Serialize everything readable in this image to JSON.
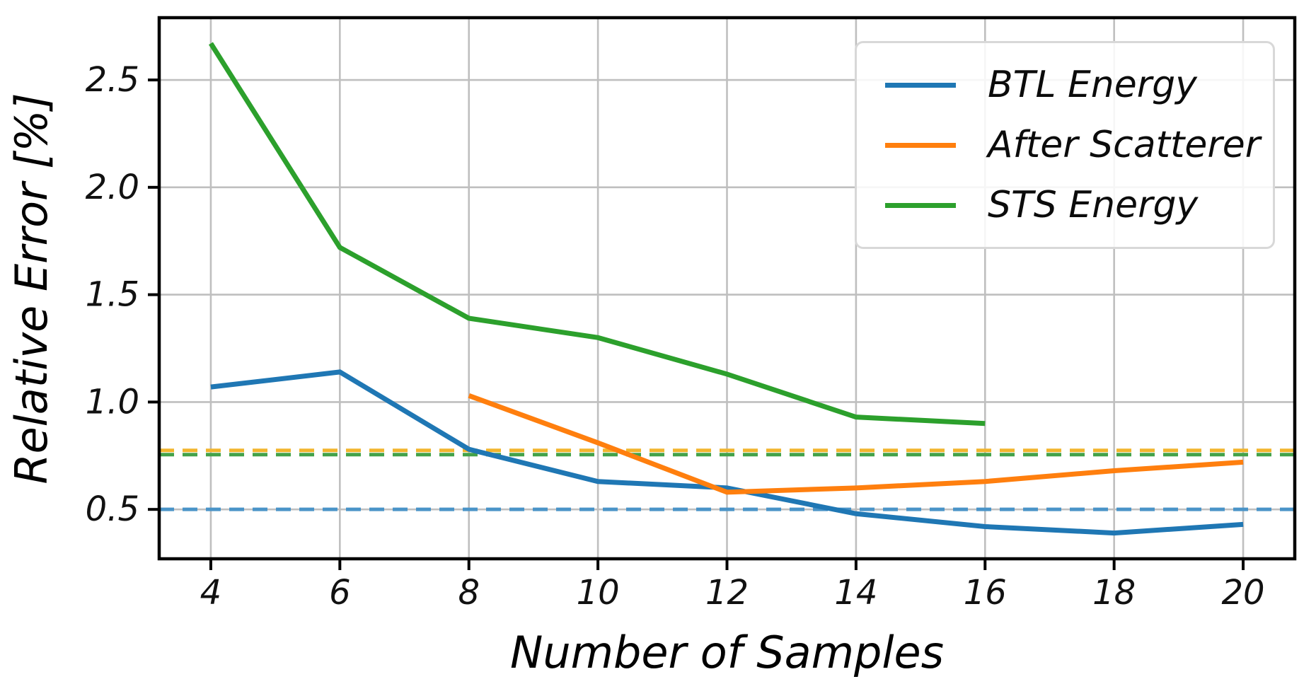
{
  "chart_data": {
    "type": "line",
    "title": "",
    "xlabel": "Number of Samples",
    "ylabel": "Relative Error [%]",
    "xlim": [
      3.2,
      20.8
    ],
    "ylim": [
      0.27,
      2.79
    ],
    "x_ticks": [
      4,
      6,
      8,
      10,
      12,
      14,
      16,
      18,
      20
    ],
    "x_tick_labels": [
      "4",
      "6",
      "8",
      "10",
      "12",
      "14",
      "16",
      "18",
      "20"
    ],
    "y_ticks": [
      0.5,
      1.0,
      1.5,
      2.0,
      2.5
    ],
    "y_tick_labels": [
      "0.5",
      "1.0",
      "1.5",
      "2.0",
      "2.5"
    ],
    "grid": true,
    "grid_color": "#bfbfbf",
    "legend_position": "upper right",
    "series": [
      {
        "name": "BTL Energy",
        "color": "#1f77b4",
        "style": "solid",
        "x": [
          4,
          6,
          8,
          10,
          12,
          14,
          16,
          18,
          20
        ],
        "y": [
          1.07,
          1.14,
          0.78,
          0.63,
          0.6,
          0.48,
          0.42,
          0.39,
          0.43
        ]
      },
      {
        "name": "After Scatterer",
        "color": "#ff7f0e",
        "style": "solid",
        "x": [
          8,
          10,
          12,
          14,
          16,
          18,
          20
        ],
        "y": [
          1.03,
          0.81,
          0.58,
          0.6,
          0.63,
          0.68,
          0.72
        ]
      },
      {
        "name": "STS Energy",
        "color": "#2ca02c",
        "style": "solid",
        "x": [
          4,
          6,
          8,
          10,
          12,
          14,
          16
        ],
        "y": [
          2.67,
          1.72,
          1.39,
          1.3,
          1.13,
          0.93,
          0.9
        ]
      }
    ],
    "reference_lines": [
      {
        "name": "sts-energy-baseline",
        "value": 0.755,
        "color": "#44a249",
        "style": "dashed"
      },
      {
        "name": "after-scatterer-baseline",
        "value": 0.775,
        "color": "#f2b52d",
        "style": "dashed"
      },
      {
        "name": "btl-energy-baseline",
        "value": 0.5,
        "color": "#4a94c8",
        "style": "dashed"
      }
    ]
  }
}
